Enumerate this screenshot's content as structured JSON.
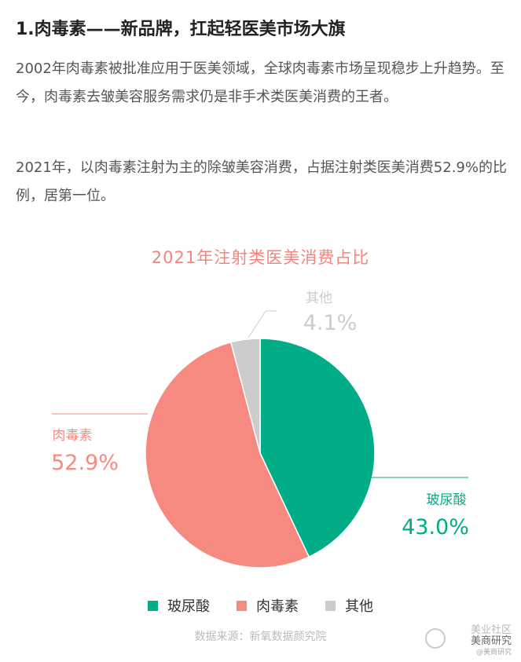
{
  "article": {
    "heading": "1.肉毒素——新品牌，扛起轻医美市场大旗",
    "paragraph1": "2002年肉毒素被批准应用于医美领域，全球肉毒素市场呈现稳步上升趋势。至今，肉毒素去皱美容服务需求仍是非手术类医美消费的王者。",
    "paragraph2": "2021年，以肉毒素注射为主的除皱美容消费，占据注射类医美消费52.9%的比例，居第一位。"
  },
  "chart_data": {
    "type": "pie",
    "title": "2021年注射类医美消费占比",
    "slices": [
      {
        "name": "玻尿酸",
        "value": 43.0,
        "label": "43.0%",
        "color": "#00ad86"
      },
      {
        "name": "肉毒素",
        "value": 52.9,
        "label": "52.9%",
        "color": "#f68a80"
      },
      {
        "name": "其他",
        "value": 4.1,
        "label": "4.1%",
        "color": "#cccccc"
      }
    ],
    "legend_position": "bottom",
    "source": "数据来源：新氧数据颜究院"
  },
  "watermark": {
    "line1": "美业社区",
    "line2": "美商研究",
    "line3": "@美商研究"
  }
}
